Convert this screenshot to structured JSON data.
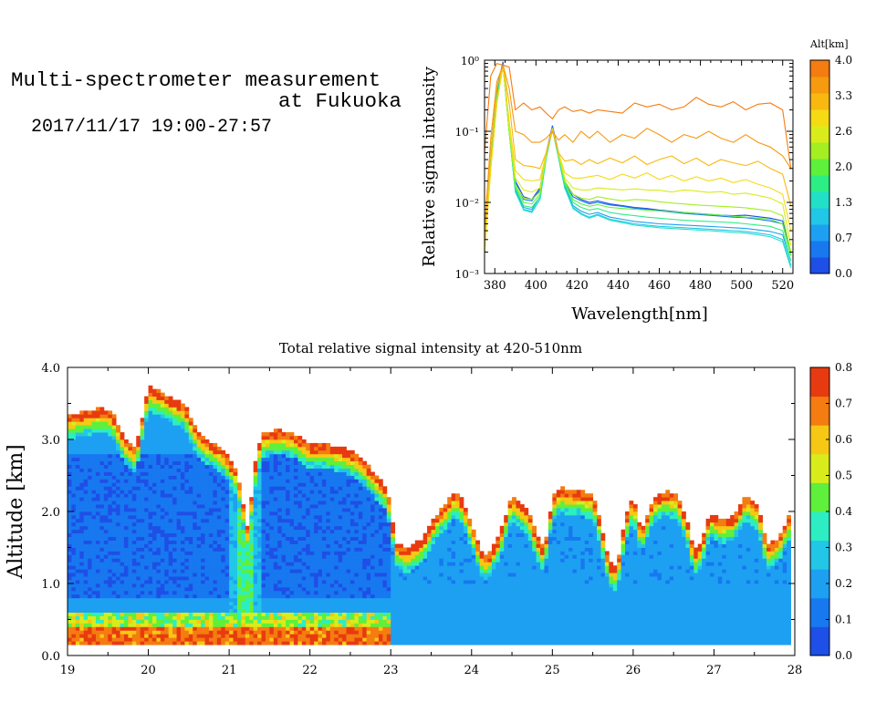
{
  "header": {
    "title_line1": "Multi-spectrometer measurement",
    "title_line2": "at Fukuoka",
    "date": "2017/11/17 19:00-27:57"
  },
  "chart_data": [
    {
      "type": "line",
      "ylabel": "Relative signal intensity",
      "xlabel": "Wavelength[nm]",
      "xlim": [
        375,
        525
      ],
      "ylim": [
        0.001,
        1
      ],
      "y_scale": "log",
      "x_ticks": [
        "380",
        "400",
        "420",
        "440",
        "460",
        "480",
        "500",
        "520"
      ],
      "x_tick_values": [
        380,
        400,
        420,
        440,
        460,
        480,
        500,
        520
      ],
      "y_ticks": [
        "10⁰",
        "10⁻¹",
        "10⁻²",
        "10⁻³"
      ],
      "y_tick_values": [
        1,
        0.1,
        0.01,
        0.001
      ],
      "colorbar": {
        "label": "Alt[km]",
        "ticks": [
          "0.0",
          "0.7",
          "1.3",
          "2.0",
          "2.6",
          "3.3",
          "4.0"
        ],
        "colors": [
          "#1e4fe6",
          "#1778f0",
          "#1da0f2",
          "#22c6e6",
          "#22e0c8",
          "#2cee84",
          "#5ef03a",
          "#a4ee22",
          "#d8ec1c",
          "#f6da14",
          "#f8b810",
          "#f69a10",
          "#f47c10"
        ]
      },
      "wavelengths": [
        375,
        378,
        381,
        384,
        387,
        390,
        394,
        398,
        402,
        405,
        408,
        411,
        414,
        418,
        422,
        426,
        430,
        436,
        442,
        448,
        454,
        460,
        466,
        472,
        478,
        484,
        490,
        496,
        502,
        508,
        514,
        520,
        524
      ],
      "series": [
        {
          "color": "#1e4fe6",
          "values": [
            0.002,
            0.05,
            0.4,
            0.95,
            0.12,
            0.02,
            0.012,
            0.011,
            0.016,
            0.05,
            0.12,
            0.05,
            0.02,
            0.013,
            0.011,
            0.01,
            0.0105,
            0.0095,
            0.009,
            0.0085,
            0.0082,
            0.0078,
            0.0075,
            0.0072,
            0.007,
            0.0068,
            0.0066,
            0.0065,
            0.0066,
            0.0063,
            0.006,
            0.0055,
            0.002
          ]
        },
        {
          "color": "#1778f0",
          "values": [
            0.002,
            0.05,
            0.4,
            0.9,
            0.12,
            0.019,
            0.011,
            0.0105,
            0.015,
            0.048,
            0.115,
            0.048,
            0.019,
            0.012,
            0.0105,
            0.0095,
            0.01,
            0.0092,
            0.0088,
            0.0083,
            0.008,
            0.0076,
            0.0073,
            0.007,
            0.0068,
            0.0066,
            0.0064,
            0.0062,
            0.0061,
            0.0058,
            0.0055,
            0.005,
            0.0018
          ]
        },
        {
          "color": "#1da0f2",
          "values": [
            0.002,
            0.045,
            0.35,
            0.85,
            0.1,
            0.015,
            0.0085,
            0.008,
            0.012,
            0.045,
            0.11,
            0.045,
            0.017,
            0.009,
            0.0075,
            0.0068,
            0.0072,
            0.0062,
            0.0058,
            0.0054,
            0.0052,
            0.005,
            0.0049,
            0.0048,
            0.0047,
            0.0046,
            0.0045,
            0.0044,
            0.0043,
            0.0041,
            0.0039,
            0.0035,
            0.0015
          ]
        },
        {
          "color": "#22c6e6",
          "values": [
            0.002,
            0.04,
            0.3,
            0.85,
            0.1,
            0.014,
            0.008,
            0.0075,
            0.011,
            0.043,
            0.108,
            0.043,
            0.016,
            0.0085,
            0.007,
            0.0062,
            0.0068,
            0.0058,
            0.0054,
            0.005,
            0.0048,
            0.0046,
            0.0045,
            0.0044,
            0.0043,
            0.0042,
            0.0041,
            0.004,
            0.0039,
            0.0037,
            0.0035,
            0.003,
            0.0013
          ]
        },
        {
          "color": "#22e0c8",
          "values": [
            0.002,
            0.04,
            0.3,
            0.85,
            0.1,
            0.014,
            0.0078,
            0.0072,
            0.011,
            0.042,
            0.106,
            0.042,
            0.016,
            0.0082,
            0.0068,
            0.006,
            0.0066,
            0.0056,
            0.0052,
            0.0048,
            0.0046,
            0.0044,
            0.0043,
            0.0042,
            0.0041,
            0.004,
            0.0039,
            0.0038,
            0.0037,
            0.0035,
            0.0033,
            0.0028,
            0.0012
          ]
        },
        {
          "color": "#2cee84",
          "values": [
            0.002,
            0.04,
            0.3,
            0.85,
            0.1,
            0.016,
            0.009,
            0.0085,
            0.012,
            0.045,
            0.11,
            0.045,
            0.018,
            0.01,
            0.0085,
            0.0078,
            0.0082,
            0.0072,
            0.0068,
            0.0065,
            0.0062,
            0.006,
            0.0058,
            0.0056,
            0.0055,
            0.0054,
            0.0053,
            0.0052,
            0.005,
            0.0048,
            0.0046,
            0.004,
            0.0015
          ]
        },
        {
          "color": "#5ef03a",
          "values": [
            0.002,
            0.03,
            0.25,
            0.85,
            0.1,
            0.017,
            0.01,
            0.0095,
            0.013,
            0.046,
            0.11,
            0.046,
            0.019,
            0.011,
            0.0095,
            0.0088,
            0.0093,
            0.0085,
            0.0082,
            0.008,
            0.0078,
            0.0076,
            0.0074,
            0.0072,
            0.007,
            0.0068,
            0.0066,
            0.0064,
            0.0062,
            0.006,
            0.0058,
            0.005,
            0.0018
          ]
        },
        {
          "color": "#a4ee22",
          "values": [
            0.002,
            0.03,
            0.25,
            0.85,
            0.1,
            0.018,
            0.0115,
            0.011,
            0.014,
            0.047,
            0.11,
            0.047,
            0.02,
            0.013,
            0.0115,
            0.011,
            0.012,
            0.0112,
            0.0105,
            0.011,
            0.0108,
            0.0102,
            0.0098,
            0.0095,
            0.0092,
            0.009,
            0.0088,
            0.0086,
            0.0084,
            0.008,
            0.0076,
            0.0065,
            0.002
          ]
        },
        {
          "color": "#d8ec1c",
          "values": [
            0.002,
            0.03,
            0.25,
            0.85,
            0.12,
            0.022,
            0.015,
            0.014,
            0.016,
            0.048,
            0.11,
            0.048,
            0.022,
            0.016,
            0.015,
            0.015,
            0.016,
            0.0155,
            0.015,
            0.0155,
            0.015,
            0.0148,
            0.014,
            0.015,
            0.0145,
            0.0138,
            0.0142,
            0.013,
            0.0135,
            0.0125,
            0.0115,
            0.0095,
            0.0025
          ]
        },
        {
          "color": "#f6da14",
          "values": [
            0.002,
            0.03,
            0.25,
            0.85,
            0.14,
            0.028,
            0.021,
            0.02,
            0.021,
            0.05,
            0.11,
            0.05,
            0.026,
            0.022,
            0.022,
            0.023,
            0.024,
            0.021,
            0.025,
            0.022,
            0.026,
            0.021,
            0.024,
            0.02,
            0.023,
            0.02,
            0.022,
            0.019,
            0.021,
            0.018,
            0.016,
            0.013,
            0.004
          ]
        },
        {
          "color": "#f8b810",
          "values": [
            0.003,
            0.05,
            0.4,
            0.85,
            0.25,
            0.04,
            0.033,
            0.032,
            0.03,
            0.05,
            0.1,
            0.05,
            0.038,
            0.04,
            0.034,
            0.04,
            0.035,
            0.042,
            0.036,
            0.045,
            0.034,
            0.04,
            0.045,
            0.035,
            0.042,
            0.033,
            0.04,
            0.036,
            0.033,
            0.038,
            0.03,
            0.025,
            0.009
          ]
        },
        {
          "color": "#f69a10",
          "values": [
            0.004,
            0.08,
            0.5,
            0.85,
            0.4,
            0.1,
            0.09,
            0.07,
            0.07,
            0.08,
            0.1,
            0.075,
            0.09,
            0.07,
            0.1,
            0.08,
            0.1,
            0.07,
            0.09,
            0.08,
            0.11,
            0.09,
            0.07,
            0.09,
            0.08,
            0.1,
            0.08,
            0.07,
            0.09,
            0.07,
            0.06,
            0.045,
            0.03
          ]
        },
        {
          "color": "#f47c10",
          "values": [
            0.05,
            0.6,
            0.9,
            0.85,
            0.8,
            0.2,
            0.25,
            0.2,
            0.22,
            0.18,
            0.15,
            0.2,
            0.22,
            0.19,
            0.2,
            0.18,
            0.2,
            0.19,
            0.18,
            0.25,
            0.22,
            0.24,
            0.2,
            0.22,
            0.3,
            0.24,
            0.22,
            0.26,
            0.2,
            0.24,
            0.25,
            0.2,
            0.03
          ]
        }
      ]
    },
    {
      "type": "heatmap",
      "title": "Total relative signal intensity at 420-510nm",
      "ylabel": "Altitude [km]",
      "xlabel": "",
      "xlim": [
        19,
        28
      ],
      "ylim": [
        0,
        4
      ],
      "x_ticks": [
        "19",
        "20",
        "21",
        "22",
        "23",
        "24",
        "25",
        "26",
        "27",
        "28"
      ],
      "x_tick_values": [
        19,
        20,
        21,
        22,
        23,
        24,
        25,
        26,
        27,
        28
      ],
      "y_ticks": [
        "0.0",
        "1.0",
        "2.0",
        "3.0",
        "4.0"
      ],
      "y_tick_values": [
        0,
        1,
        2,
        3,
        4
      ],
      "data_extent": {
        "t_start": 19.0,
        "t_end": 27.95,
        "alt_bottom": 0.15,
        "alt_top": 4.0
      },
      "colorbar": {
        "ticks": [
          "0.0",
          "0.1",
          "0.2",
          "0.3",
          "0.4",
          "0.5",
          "0.6",
          "0.7",
          "0.8"
        ],
        "colors": [
          "#1e4fe6",
          "#1778f0",
          "#1da0f2",
          "#22c6e6",
          "#2ceec2",
          "#5ef03a",
          "#d8ec1c",
          "#f6c814",
          "#f47c10",
          "#e83a10"
        ]
      },
      "cloud_top_km": {
        "t": [
          19.0,
          19.2,
          19.4,
          19.55,
          19.7,
          19.85,
          20.0,
          20.2,
          20.45,
          20.6,
          20.75,
          20.9,
          21.0,
          21.08,
          21.15,
          21.2,
          21.24,
          21.3,
          21.4,
          21.6,
          21.8,
          22.0,
          22.2,
          22.4,
          22.6,
          22.8,
          22.95,
          23.0,
          23.05,
          23.2,
          23.4,
          23.55,
          23.7,
          23.8,
          23.9,
          24.0,
          24.1,
          24.2,
          24.35,
          24.5,
          24.6,
          24.7,
          24.8,
          24.9,
          25.0,
          25.1,
          25.25,
          25.35,
          25.5,
          25.6,
          25.7,
          25.8,
          25.9,
          26.0,
          26.1,
          26.25,
          26.4,
          26.55,
          26.7,
          26.75,
          26.85,
          26.95,
          27.1,
          27.25,
          27.4,
          27.55,
          27.65,
          27.8,
          27.95
        ],
        "top": [
          3.3,
          3.35,
          3.4,
          3.35,
          3.0,
          2.85,
          3.7,
          3.6,
          3.45,
          3.1,
          2.95,
          2.85,
          2.7,
          2.55,
          2.25,
          1.9,
          1.7,
          2.5,
          3.05,
          3.1,
          3.05,
          2.9,
          2.9,
          2.85,
          2.75,
          2.5,
          2.3,
          2.05,
          1.55,
          1.45,
          1.6,
          1.9,
          2.1,
          2.25,
          2.1,
          1.8,
          1.45,
          1.35,
          1.65,
          2.2,
          2.1,
          2.0,
          1.65,
          1.45,
          2.15,
          2.3,
          2.25,
          2.25,
          2.2,
          1.8,
          1.25,
          1.2,
          1.85,
          2.2,
          1.7,
          2.15,
          2.25,
          2.2,
          1.75,
          1.4,
          1.55,
          1.95,
          1.85,
          1.9,
          2.2,
          2.05,
          1.5,
          1.6,
          1.95
        ]
      }
    }
  ]
}
